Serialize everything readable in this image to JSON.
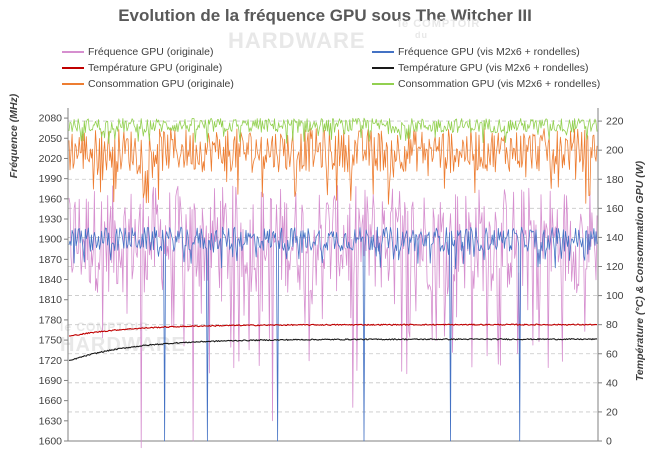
{
  "chart_data": {
    "type": "line",
    "title": "Evolution de la fréquence GPU sous The Witcher III",
    "ylabel_left": "Fréquence (MHz)",
    "ylabel_right": "Température (°C) & Consommation GPU (W)",
    "y_left_range": [
      1600,
      2095
    ],
    "y_left_ticks": [
      1600,
      1630,
      1660,
      1690,
      1720,
      1750,
      1780,
      1810,
      1840,
      1870,
      1900,
      1930,
      1960,
      1990,
      2020,
      2050,
      2080
    ],
    "y_right_range": [
      0,
      229
    ],
    "y_right_ticks": [
      0,
      20,
      40,
      60,
      80,
      100,
      120,
      140,
      160,
      180,
      200,
      220
    ],
    "grid": true,
    "series": [
      {
        "name": "Fréquence GPU (originale)",
        "color": "#d68fcf",
        "axis": "left",
        "kind": "noisy",
        "mean": 1900,
        "spread": 80,
        "dips": [
          1590,
          1600,
          1630,
          1650,
          1700,
          1710,
          1730
        ]
      },
      {
        "name": "Fréquence GPU (vis M2x6 + rondelles)",
        "color": "#4472c4",
        "axis": "left",
        "kind": "noisy",
        "mean": 1900,
        "spread": 18,
        "dips": [
          1600,
          1600,
          1600,
          1600,
          1600,
          1600
        ]
      },
      {
        "name": "Température GPU (originale)",
        "color": "#c00000",
        "axis": "right",
        "kind": "settle",
        "start": 72,
        "end": 80
      },
      {
        "name": "Température GPU (vis M2x6 + rondelles)",
        "color": "#1a1a1a",
        "axis": "right",
        "kind": "settle",
        "start": 55,
        "end": 70
      },
      {
        "name": "Consommation GPU (originale)",
        "color": "#ed7d31",
        "axis": "right",
        "kind": "noisy",
        "mean": 200,
        "spread": 15
      },
      {
        "name": "Consommation GPU (vis M2x6 + rondelles)",
        "color": "#92d050",
        "axis": "right",
        "kind": "noisy",
        "mean": 217,
        "spread": 5
      }
    ]
  },
  "watermark": {
    "line1": "le COMPTOIR",
    "line2": "du",
    "line3": "HARDWARE"
  }
}
